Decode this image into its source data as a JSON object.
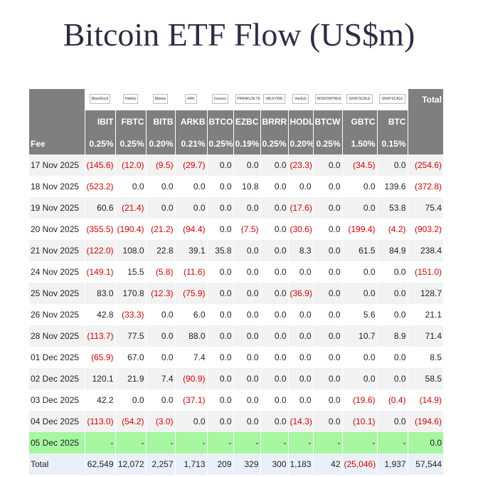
{
  "title": "Bitcoin ETF Flow (US$m)",
  "table": {
    "logos": [
      "BlackRock",
      "Fidelity",
      "Bitwise",
      "ARK",
      "Invesco",
      "FRANKLIN TEMPLETON",
      "VALKYRIE",
      "VanEck",
      "WISDOMTREE",
      "GRAYSCALE",
      "GRAYSCALE"
    ],
    "total_label": "Total",
    "columns": [
      "IBIT",
      "FBTC",
      "BITB",
      "ARKB",
      "BTCO",
      "EZBC",
      "BRRR",
      "HODL",
      "BTCW",
      "GBTC",
      "BTC"
    ],
    "fee_label": "Fee",
    "fees": [
      "0.25%",
      "0.25%",
      "0.20%",
      "0.21%",
      "0.25%",
      "0.19%",
      "0.25%",
      "0.20%",
      "0.25%",
      "1.50%",
      "0.15%"
    ],
    "rows": [
      [
        "17 Nov 2025",
        "(145.6)",
        "(12.0)",
        "(9.5)",
        "(29.7)",
        "0.0",
        "0.0",
        "0.0",
        "(23.3)",
        "0.0",
        "(34.5)",
        "0.0",
        "(254.6)"
      ],
      [
        "18 Nov 2025",
        "(523.2)",
        "0.0",
        "0.0",
        "0.0",
        "0.0",
        "10.8",
        "0.0",
        "0.0",
        "0.0",
        "0.0",
        "139.6",
        "(372.8)"
      ],
      [
        "19 Nov 2025",
        "60.6",
        "(21.4)",
        "0.0",
        "0.0",
        "0.0",
        "0.0",
        "0.0",
        "(17.6)",
        "0.0",
        "0.0",
        "53.8",
        "75.4"
      ],
      [
        "20 Nov 2025",
        "(355.5)",
        "(190.4)",
        "(21.2)",
        "(94.4)",
        "0.0",
        "(7.5)",
        "0.0",
        "(30.6)",
        "0.0",
        "(199.4)",
        "(4.2)",
        "(903.2)"
      ],
      [
        "21 Nov 2025",
        "(122.0)",
        "108.0",
        "22.8",
        "39.1",
        "35.8",
        "0.0",
        "0.0",
        "8.3",
        "0.0",
        "61.5",
        "84.9",
        "238.4"
      ],
      [
        "24 Nov 2025",
        "(149.1)",
        "15.5",
        "(5.8)",
        "(11.6)",
        "0.0",
        "0.0",
        "0.0",
        "0.0",
        "0.0",
        "0.0",
        "0.0",
        "(151.0)"
      ],
      [
        "25 Nov 2025",
        "83.0",
        "170.8",
        "(12.3)",
        "(75.9)",
        "0.0",
        "0.0",
        "0.0",
        "(36.9)",
        "0.0",
        "0.0",
        "0.0",
        "128.7"
      ],
      [
        "26 Nov 2025",
        "42.8",
        "(33.3)",
        "0.0",
        "6.0",
        "0.0",
        "0.0",
        "0.0",
        "0.0",
        "0.0",
        "5.6",
        "0.0",
        "21.1"
      ],
      [
        "28 Nov 2025",
        "(113.7)",
        "77.5",
        "0.0",
        "88.0",
        "0.0",
        "0.0",
        "0.0",
        "0.0",
        "0.0",
        "10.7",
        "8.9",
        "71.4"
      ],
      [
        "01 Dec 2025",
        "(65.9)",
        "67.0",
        "0.0",
        "7.4",
        "0.0",
        "0.0",
        "0.0",
        "0.0",
        "0.0",
        "0.0",
        "0.0",
        "8.5"
      ],
      [
        "02 Dec 2025",
        "120.1",
        "21.9",
        "7.4",
        "(90.9)",
        "0.0",
        "0.0",
        "0.0",
        "0.0",
        "0.0",
        "0.0",
        "0.0",
        "58.5"
      ],
      [
        "03 Dec 2025",
        "42.2",
        "0.0",
        "0.0",
        "(37.1)",
        "0.0",
        "0.0",
        "0.0",
        "0.0",
        "0.0",
        "(19.6)",
        "(0.4)",
        "(14.9)"
      ],
      [
        "04 Dec 2025",
        "(113.0)",
        "(54.2)",
        "(3.0)",
        "0.0",
        "0.0",
        "0.0",
        "0.0",
        "(14.3)",
        "0.0",
        "(10.1)",
        "0.0",
        "(194.6)"
      ],
      [
        "05 Dec 2025",
        "-",
        "-",
        "-",
        "-",
        "-",
        "-",
        "-",
        "-",
        "-",
        "-",
        "-",
        "0.0"
      ]
    ],
    "total_row": [
      "Total",
      "62,549",
      "12,072",
      "2,257",
      "1,713",
      "209",
      "329",
      "300",
      "1,183",
      "42",
      "(25,046)",
      "1,937",
      "57,544"
    ]
  }
}
